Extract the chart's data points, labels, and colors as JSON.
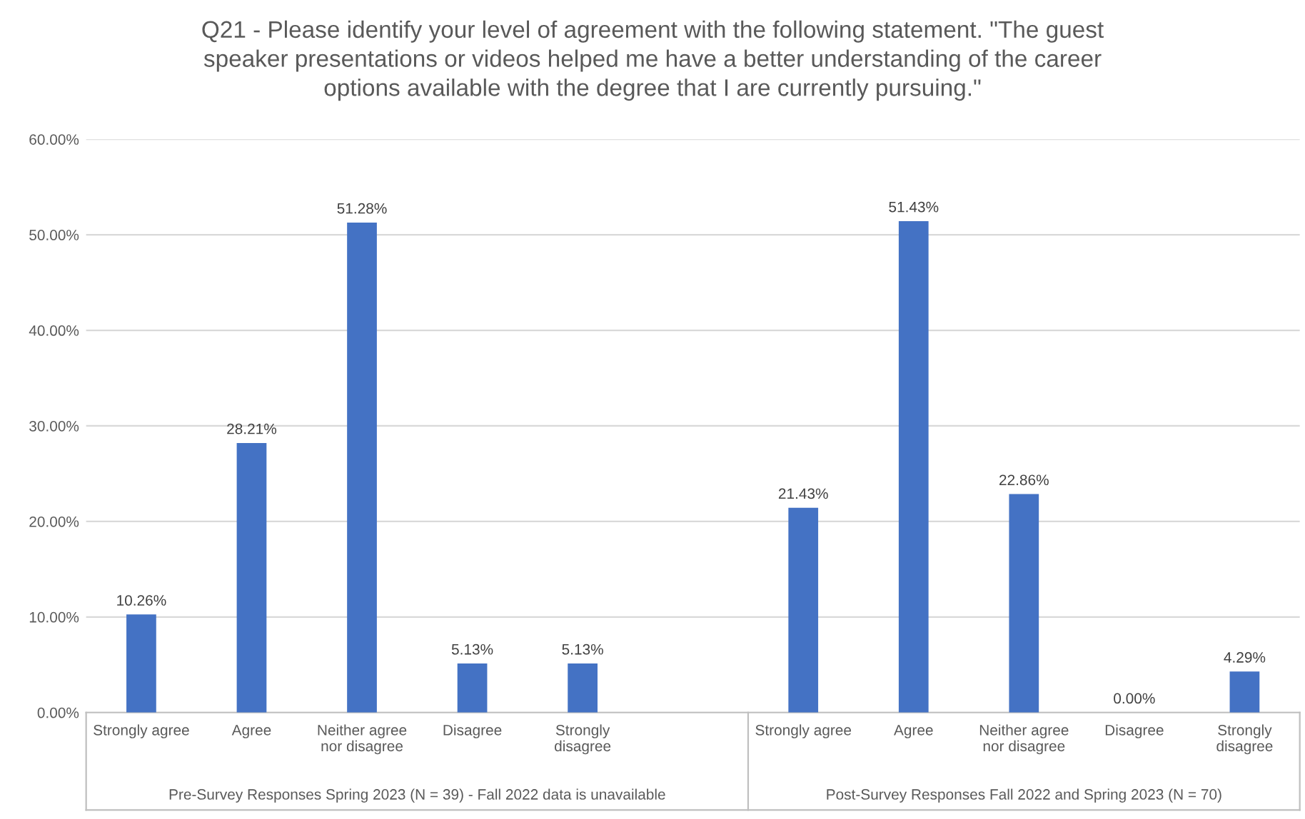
{
  "chart_data": {
    "type": "bar",
    "title": "Q21 - Please identify your level of agreement with the following statement. \"The guest speaker presentations or videos helped me have a better understanding of the career options available with the degree that I are currently pursuing.\"",
    "categories": [
      "Strongly agree",
      "Agree",
      "Neither agree\nnor disagree",
      "Disagree",
      "Strongly\ndisagree",
      null,
      "Strongly agree",
      "Agree",
      "Neither agree\nnor disagree",
      "Disagree",
      "Strongly\ndisagree"
    ],
    "values": [
      10.26,
      28.21,
      51.28,
      5.13,
      5.13,
      null,
      21.43,
      51.43,
      22.86,
      0.0,
      4.29
    ],
    "value_labels": [
      "10.26%",
      "28.21%",
      "51.28%",
      "5.13%",
      "5.13%",
      null,
      "21.43%",
      "51.43%",
      "22.86%",
      "0.00%",
      "4.29%"
    ],
    "color": "#4472c4",
    "ylim": [
      0,
      60
    ],
    "yticks": [
      {
        "value": 0,
        "label": "0.00%"
      },
      {
        "value": 10,
        "label": "10.00%"
      },
      {
        "value": 20,
        "label": "20.00%"
      },
      {
        "value": 30,
        "label": "30.00%"
      },
      {
        "value": 40,
        "label": "40.00%"
      },
      {
        "value": 50,
        "label": "50.00%"
      },
      {
        "value": 60,
        "label": "60.00%"
      }
    ],
    "grid": "y",
    "annotations": [
      "Pre-Survey Responses Spring 2023 (N = 39) - Fall 2022 data is unavailable",
      "Post-Survey Responses Fall 2022 and Spring 2023 (N = 70)"
    ]
  }
}
